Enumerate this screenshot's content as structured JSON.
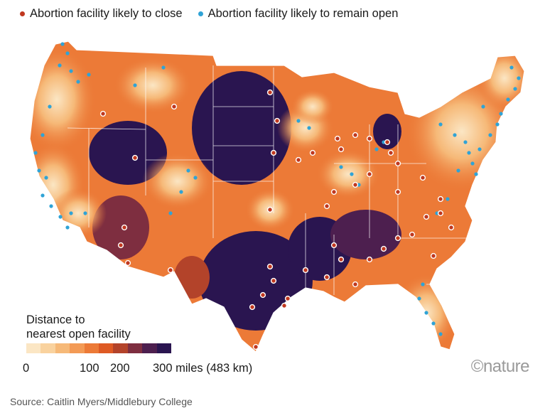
{
  "legend": {
    "close_label": "Abortion facility likely to close",
    "open_label": "Abortion facility likely to remain open",
    "close_color": "#c0381f",
    "open_color": "#2fa3d6"
  },
  "scale": {
    "title_line1": "Distance to",
    "title_line2": "nearest open facility",
    "colors": [
      "#fbe6c4",
      "#f9d29e",
      "#f6b978",
      "#f39a55",
      "#ec7a37",
      "#de5a24",
      "#b3432a",
      "#7e2e40",
      "#4d1f4f",
      "#2a1550"
    ],
    "ticks": [
      "0",
      "100",
      "200",
      "300 miles (483 km)"
    ]
  },
  "brand": "©nature",
  "source": "Source: Caitlin Myers/Middlebury College"
}
